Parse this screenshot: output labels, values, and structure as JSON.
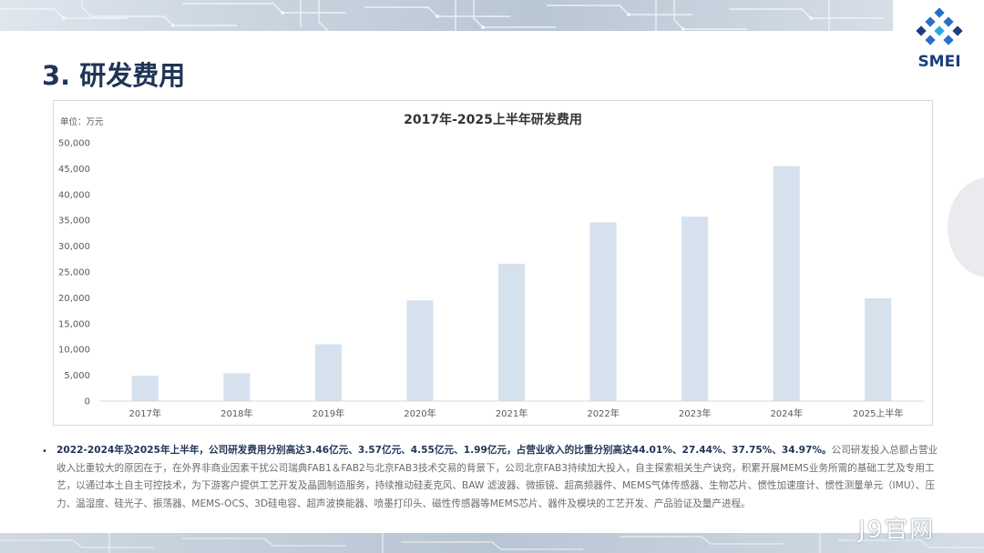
{
  "page": {
    "title": "3. 研发费用",
    "logo_text": "SMEI",
    "watermark": "J9官网",
    "description_bold": "2022-2024年及2025年上半年，公司研发费用分别高达3.46亿元、3.57亿元、4.55亿元、1.99亿元，占营业收入的比重分别高达44.01%、27.44%、37.75%、34.97%。",
    "description_rest": "公司研发投入总额占营业收入比重较大的原因在于，在外界非商业因素干扰公司瑞典FAB1＆FAB2与北京FAB3技术交易的背景下，公司北京FAB3持续加大投入，自主探索相关生产诀窍，积累开展MEMS业务所需的基础工艺及专用工艺，以通过本土自主可控技术，为下游客户提供工艺开发及晶圆制造服务，持续推动硅麦克风、BAW 滤波器、微振镜、超高频器件、MEMS气体传感器、生物芯片、惯性加速度计、惯性测量单元（IMU）、压力、温湿度、硅光子、振荡器、MEMS-OCS、3D硅电容、超声波换能器、喷墨打印头、磁性传感器等MEMS芯片、器件及模块的工艺开发、产品验证及量产进程。",
    "colors": {
      "bar": "#d5e2ee",
      "title": "#1f3556",
      "axis": "#595959"
    }
  },
  "chart_data": {
    "type": "bar",
    "title": "2017年-2025上半年研发费用",
    "unit_label": "单位：万元",
    "categories": [
      "2017年",
      "2018年",
      "2019年",
      "2020年",
      "2021年",
      "2022年",
      "2023年",
      "2024年",
      "2025上半年"
    ],
    "values": [
      4900,
      5400,
      11000,
      19500,
      26600,
      34600,
      35700,
      45500,
      19900
    ],
    "ylim": [
      0,
      50000
    ],
    "yticks": [
      0,
      5000,
      10000,
      15000,
      20000,
      25000,
      30000,
      35000,
      40000,
      45000,
      50000
    ],
    "ytick_labels": [
      "0",
      "5,000",
      "10,000",
      "15,000",
      "20,000",
      "25,000",
      "30,000",
      "35,000",
      "40,000",
      "45,000",
      "50,000"
    ],
    "grid": false,
    "legend": "none"
  }
}
